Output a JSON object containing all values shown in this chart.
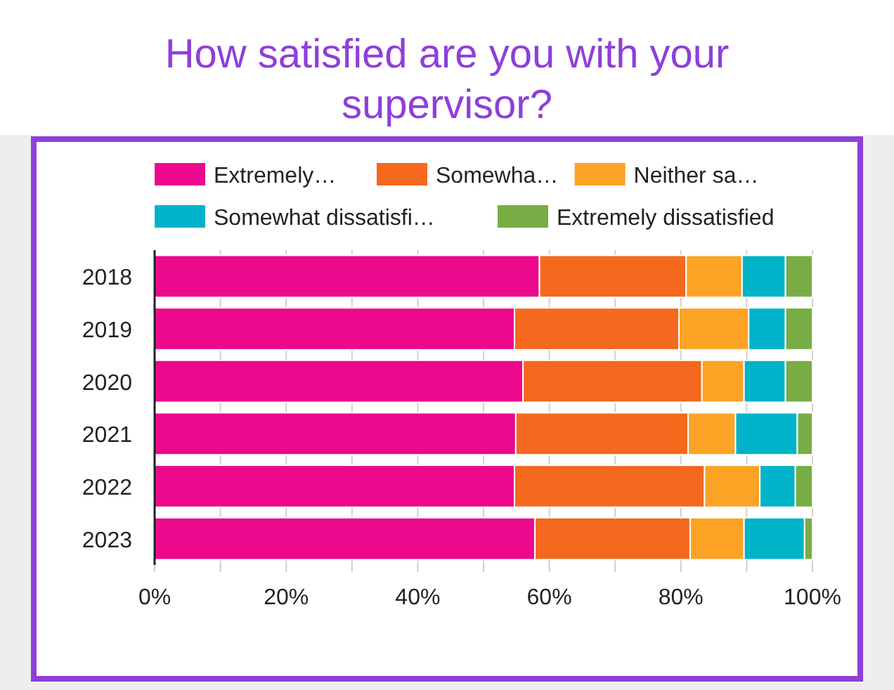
{
  "chart_data": {
    "type": "bar",
    "orientation": "horizontal",
    "stacked": true,
    "title": "How satisfied are you with your supervisor?",
    "categories": [
      "2018",
      "2019",
      "2020",
      "2021",
      "2022",
      "2023"
    ],
    "series": [
      {
        "name": "Extremely…",
        "color": "#ec098d",
        "values": [
          58.5,
          54.7,
          56.0,
          54.9,
          54.7,
          57.8
        ]
      },
      {
        "name": "Somewha…",
        "color": "#f4691e",
        "values": [
          22.3,
          25.0,
          27.2,
          26.2,
          28.9,
          23.6
        ]
      },
      {
        "name": "Neither sa…",
        "color": "#fca326",
        "values": [
          8.5,
          10.6,
          6.4,
          7.2,
          8.4,
          8.2
        ]
      },
      {
        "name": "Somewhat dissatisfi…",
        "color": "#00b3c8",
        "values": [
          6.6,
          5.6,
          6.3,
          9.4,
          5.4,
          9.2
        ]
      },
      {
        "name": "Extremely dissatisfied",
        "color": "#78ad45",
        "values": [
          4.1,
          4.1,
          4.1,
          2.3,
          2.6,
          1.2
        ]
      }
    ],
    "xlim": [
      0,
      100
    ],
    "xticks": [
      {
        "value": 0,
        "label": "0%"
      },
      {
        "value": 10,
        "label": null
      },
      {
        "value": 20,
        "label": "20%"
      },
      {
        "value": 30,
        "label": null
      },
      {
        "value": 40,
        "label": "40%"
      },
      {
        "value": 50,
        "label": null
      },
      {
        "value": 60,
        "label": "60%"
      },
      {
        "value": 70,
        "label": null
      },
      {
        "value": 80,
        "label": "80%"
      },
      {
        "value": 90,
        "label": null
      },
      {
        "value": 100,
        "label": "100%"
      }
    ],
    "grid": "x",
    "legend": "top"
  }
}
